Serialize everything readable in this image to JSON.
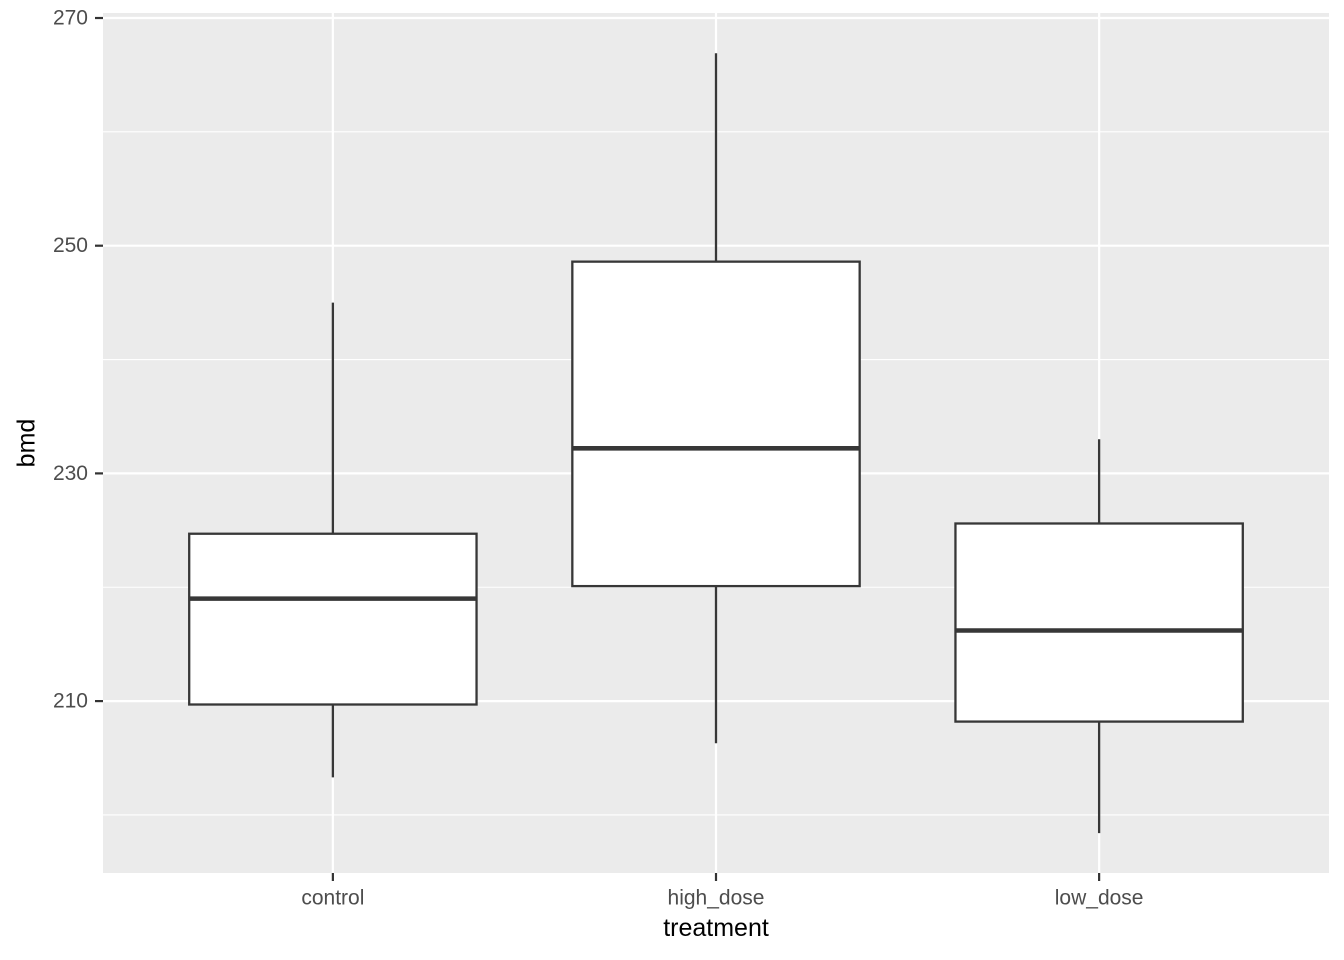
{
  "chart_data": {
    "type": "boxplot",
    "title": "",
    "xlabel": "treatment",
    "ylabel": "bmd",
    "categories": [
      "control",
      "high_dose",
      "low_dose"
    ],
    "series": [
      {
        "category": "control",
        "whisker_low": 203.3,
        "q1": 209.7,
        "median": 219.0,
        "q3": 224.7,
        "whisker_high": 245.0
      },
      {
        "category": "high_dose",
        "whisker_low": 206.3,
        "q1": 220.1,
        "median": 232.2,
        "q3": 248.6,
        "whisker_high": 266.9
      },
      {
        "category": "low_dose",
        "whisker_low": 198.4,
        "q1": 208.2,
        "median": 216.2,
        "q3": 225.6,
        "whisker_high": 233.0
      }
    ],
    "y_axis": {
      "major_ticks": [
        210,
        230,
        250,
        270
      ],
      "minor_gridlines": [
        200,
        220,
        240,
        260
      ],
      "ylim": [
        194.9,
        270.44
      ]
    },
    "x_axis": {
      "tick_labels": [
        "control",
        "high_dose",
        "low_dose"
      ]
    },
    "grid": "major and minor horizontal white lines, major vertical white lines",
    "legend": "none"
  },
  "style": {
    "page_bg": "#FFFFFF",
    "panel_bg": "#EBEBEB",
    "grid_color": "#FFFFFF",
    "box_border_color": "#373737",
    "box_fill": "#FFFFFF",
    "median_color": "#373737",
    "whisker_color": "#373737",
    "tick_mark_color": "#333333",
    "axis_text_color": "#4D4D4D",
    "axis_title_color": "#000000"
  }
}
